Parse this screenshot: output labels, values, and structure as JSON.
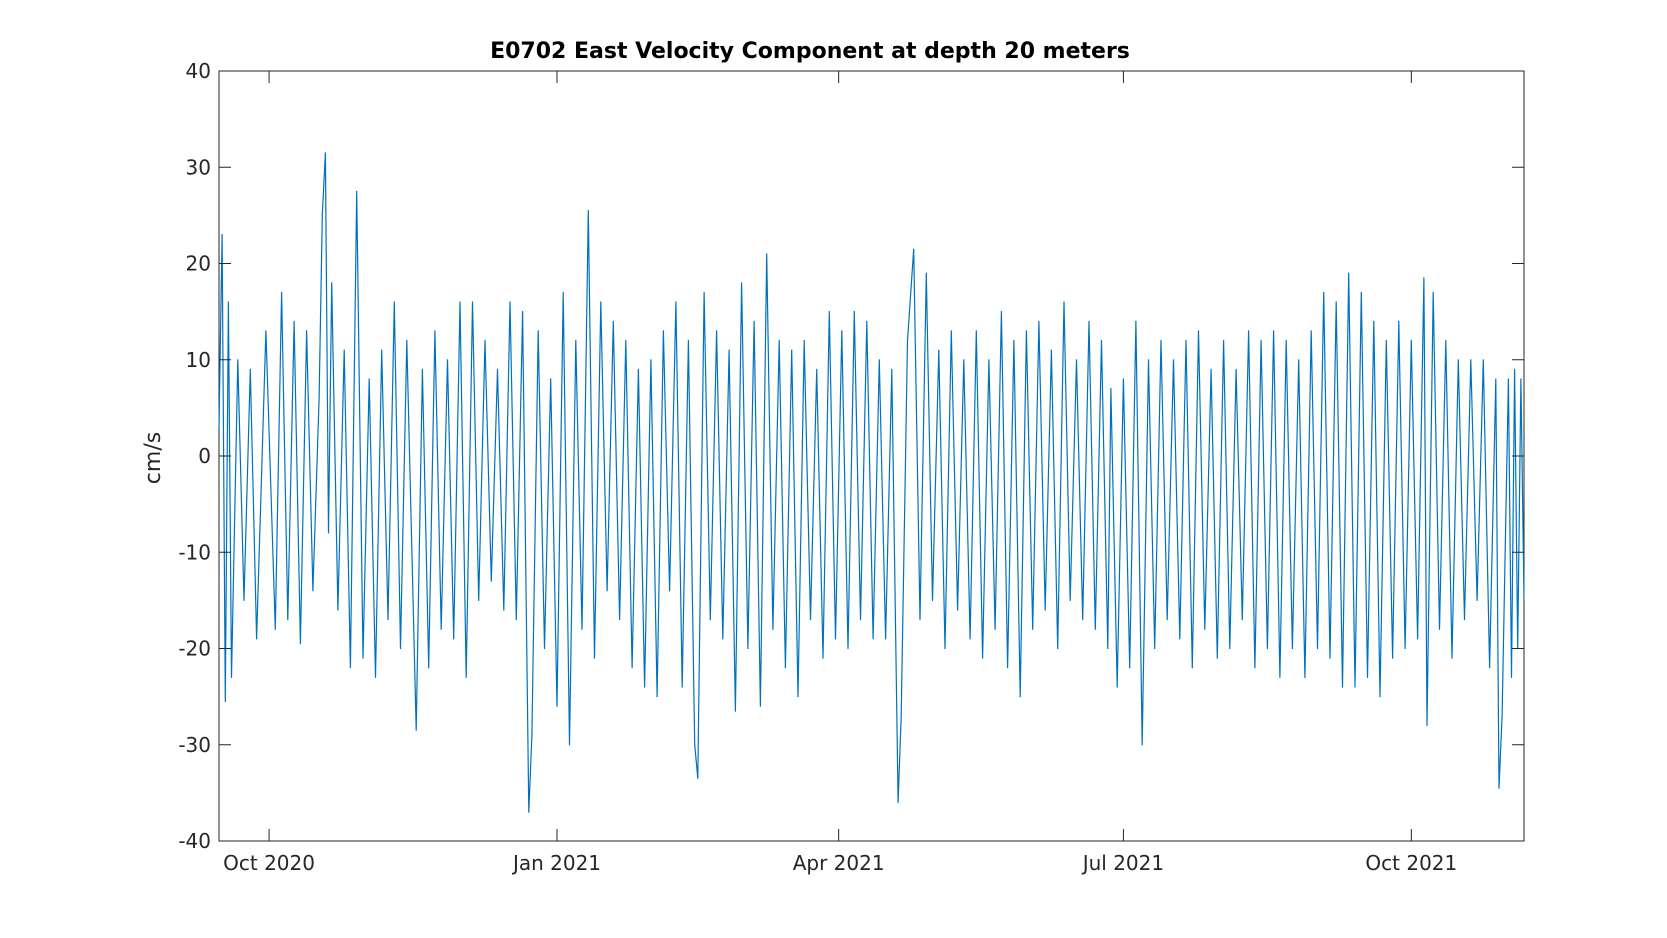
{
  "chart_data": {
    "type": "line",
    "title": "E0702 East Velocity Component at depth 20 meters",
    "xlabel": "",
    "ylabel": "cm/s",
    "x_range": [
      "2020-09-15",
      "2021-11-06"
    ],
    "ylim": [
      -40,
      40
    ],
    "yticks": [
      40,
      30,
      20,
      10,
      0,
      -10,
      -20,
      -30,
      -40
    ],
    "xticks": [
      {
        "date": "2020-10-01",
        "label": "Oct 2020"
      },
      {
        "date": "2021-01-01",
        "label": "Jan 2021"
      },
      {
        "date": "2021-04-01",
        "label": "Apr 2021"
      },
      {
        "date": "2021-07-01",
        "label": "Jul 2021"
      },
      {
        "date": "2021-10-01",
        "label": "Oct 2021"
      }
    ],
    "grid": false,
    "series_color": "#0072BD",
    "series": [
      {
        "name": "",
        "note_sampling": "high-frequency series; envelope points listed (date, value in cm/s)",
        "points": [
          [
            "2020-09-15",
            3
          ],
          [
            "2020-09-16",
            23
          ],
          [
            "2020-09-17",
            -25.5
          ],
          [
            "2020-09-18",
            16
          ],
          [
            "2020-09-19",
            -23
          ],
          [
            "2020-09-21",
            10
          ],
          [
            "2020-09-23",
            -15
          ],
          [
            "2020-09-25",
            9
          ],
          [
            "2020-09-27",
            -19
          ],
          [
            "2020-09-30",
            13
          ],
          [
            "2020-10-03",
            -18
          ],
          [
            "2020-10-05",
            17
          ],
          [
            "2020-10-07",
            -17
          ],
          [
            "2020-10-09",
            14
          ],
          [
            "2020-10-11",
            -19.5
          ],
          [
            "2020-10-13",
            13
          ],
          [
            "2020-10-15",
            -14
          ],
          [
            "2020-10-17",
            6
          ],
          [
            "2020-10-18",
            25
          ],
          [
            "2020-10-19",
            31.5
          ],
          [
            "2020-10-20",
            -8
          ],
          [
            "2020-10-21",
            18
          ],
          [
            "2020-10-23",
            -16
          ],
          [
            "2020-10-25",
            11
          ],
          [
            "2020-10-27",
            -22
          ],
          [
            "2020-10-29",
            27.5
          ],
          [
            "2020-10-31",
            -21
          ],
          [
            "2020-11-02",
            8
          ],
          [
            "2020-11-04",
            -23
          ],
          [
            "2020-11-06",
            11
          ],
          [
            "2020-11-08",
            -17
          ],
          [
            "2020-11-10",
            16
          ],
          [
            "2020-11-12",
            -20
          ],
          [
            "2020-11-14",
            12
          ],
          [
            "2020-11-17",
            -28.5
          ],
          [
            "2020-11-19",
            9
          ],
          [
            "2020-11-21",
            -22
          ],
          [
            "2020-11-23",
            13
          ],
          [
            "2020-11-25",
            -18
          ],
          [
            "2020-11-27",
            10
          ],
          [
            "2020-11-29",
            -19
          ],
          [
            "2020-12-01",
            16
          ],
          [
            "2020-12-03",
            -23
          ],
          [
            "2020-12-05",
            16
          ],
          [
            "2020-12-07",
            -15
          ],
          [
            "2020-12-09",
            12
          ],
          [
            "2020-12-11",
            -13
          ],
          [
            "2020-12-13",
            9
          ],
          [
            "2020-12-15",
            -16
          ],
          [
            "2020-12-17",
            16
          ],
          [
            "2020-12-19",
            -17
          ],
          [
            "2020-12-21",
            15
          ],
          [
            "2020-12-23",
            -37
          ],
          [
            "2020-12-24",
            -29
          ],
          [
            "2020-12-26",
            13
          ],
          [
            "2020-12-28",
            -20
          ],
          [
            "2020-12-30",
            8
          ],
          [
            "2021-01-01",
            -26
          ],
          [
            "2021-01-03",
            17
          ],
          [
            "2021-01-05",
            -30
          ],
          [
            "2021-01-07",
            12
          ],
          [
            "2021-01-09",
            -18
          ],
          [
            "2021-01-11",
            25.5
          ],
          [
            "2021-01-13",
            -21
          ],
          [
            "2021-01-15",
            16
          ],
          [
            "2021-01-17",
            -14
          ],
          [
            "2021-01-19",
            14
          ],
          [
            "2021-01-21",
            -17
          ],
          [
            "2021-01-23",
            12
          ],
          [
            "2021-01-25",
            -22
          ],
          [
            "2021-01-27",
            9
          ],
          [
            "2021-01-29",
            -24
          ],
          [
            "2021-01-31",
            10
          ],
          [
            "2021-02-02",
            -25
          ],
          [
            "2021-02-04",
            13
          ],
          [
            "2021-02-06",
            -14
          ],
          [
            "2021-02-08",
            16
          ],
          [
            "2021-02-10",
            -24
          ],
          [
            "2021-02-12",
            12
          ],
          [
            "2021-02-14",
            -30
          ],
          [
            "2021-02-15",
            -33.5
          ],
          [
            "2021-02-17",
            17
          ],
          [
            "2021-02-19",
            -17
          ],
          [
            "2021-02-21",
            13
          ],
          [
            "2021-02-23",
            -19
          ],
          [
            "2021-02-25",
            11
          ],
          [
            "2021-02-27",
            -26.5
          ],
          [
            "2021-03-01",
            18
          ],
          [
            "2021-03-03",
            -20
          ],
          [
            "2021-03-05",
            14
          ],
          [
            "2021-03-07",
            -26
          ],
          [
            "2021-03-09",
            21
          ],
          [
            "2021-03-11",
            -18
          ],
          [
            "2021-03-13",
            12
          ],
          [
            "2021-03-15",
            -22
          ],
          [
            "2021-03-17",
            11
          ],
          [
            "2021-03-19",
            -25
          ],
          [
            "2021-03-21",
            12
          ],
          [
            "2021-03-23",
            -17
          ],
          [
            "2021-03-25",
            9
          ],
          [
            "2021-03-27",
            -21
          ],
          [
            "2021-03-29",
            15
          ],
          [
            "2021-03-31",
            -19
          ],
          [
            "2021-04-02",
            13
          ],
          [
            "2021-04-04",
            -20
          ],
          [
            "2021-04-06",
            15
          ],
          [
            "2021-04-08",
            -17
          ],
          [
            "2021-04-10",
            14
          ],
          [
            "2021-04-12",
            -19
          ],
          [
            "2021-04-14",
            10
          ],
          [
            "2021-04-16",
            -19
          ],
          [
            "2021-04-18",
            9
          ],
          [
            "2021-04-20",
            -36
          ],
          [
            "2021-04-21",
            -27
          ],
          [
            "2021-04-23",
            12
          ],
          [
            "2021-04-25",
            21.5
          ],
          [
            "2021-04-27",
            -17
          ],
          [
            "2021-04-29",
            19
          ],
          [
            "2021-05-01",
            -15
          ],
          [
            "2021-05-03",
            11
          ],
          [
            "2021-05-05",
            -20
          ],
          [
            "2021-05-07",
            13
          ],
          [
            "2021-05-09",
            -16
          ],
          [
            "2021-05-11",
            10
          ],
          [
            "2021-05-13",
            -19
          ],
          [
            "2021-05-15",
            13
          ],
          [
            "2021-05-17",
            -21
          ],
          [
            "2021-05-19",
            10
          ],
          [
            "2021-05-21",
            -18
          ],
          [
            "2021-05-23",
            15
          ],
          [
            "2021-05-25",
            -22
          ],
          [
            "2021-05-27",
            12
          ],
          [
            "2021-05-29",
            -25
          ],
          [
            "2021-05-31",
            13
          ],
          [
            "2021-06-02",
            -18
          ],
          [
            "2021-06-04",
            14
          ],
          [
            "2021-06-06",
            -16
          ],
          [
            "2021-06-08",
            11
          ],
          [
            "2021-06-10",
            -20
          ],
          [
            "2021-06-12",
            16
          ],
          [
            "2021-06-14",
            -15
          ],
          [
            "2021-06-16",
            10
          ],
          [
            "2021-06-18",
            -17
          ],
          [
            "2021-06-20",
            14
          ],
          [
            "2021-06-22",
            -18
          ],
          [
            "2021-06-24",
            12
          ],
          [
            "2021-06-26",
            -20
          ],
          [
            "2021-06-27",
            7
          ],
          [
            "2021-06-29",
            -24
          ],
          [
            "2021-07-01",
            8
          ],
          [
            "2021-07-03",
            -22
          ],
          [
            "2021-07-05",
            14
          ],
          [
            "2021-07-07",
            -30
          ],
          [
            "2021-07-09",
            10
          ],
          [
            "2021-07-11",
            -20
          ],
          [
            "2021-07-13",
            12
          ],
          [
            "2021-07-15",
            -17
          ],
          [
            "2021-07-17",
            10
          ],
          [
            "2021-07-19",
            -19
          ],
          [
            "2021-07-21",
            12
          ],
          [
            "2021-07-23",
            -22
          ],
          [
            "2021-07-25",
            13
          ],
          [
            "2021-07-27",
            -18
          ],
          [
            "2021-07-29",
            9
          ],
          [
            "2021-07-31",
            -21
          ],
          [
            "2021-08-02",
            12
          ],
          [
            "2021-08-04",
            -20
          ],
          [
            "2021-08-06",
            9
          ],
          [
            "2021-08-08",
            -17
          ],
          [
            "2021-08-10",
            13
          ],
          [
            "2021-08-12",
            -22
          ],
          [
            "2021-08-14",
            12
          ],
          [
            "2021-08-16",
            -20
          ],
          [
            "2021-08-18",
            13
          ],
          [
            "2021-08-20",
            -23
          ],
          [
            "2021-08-22",
            12
          ],
          [
            "2021-08-24",
            -20
          ],
          [
            "2021-08-26",
            10
          ],
          [
            "2021-08-28",
            -23
          ],
          [
            "2021-08-30",
            13
          ],
          [
            "2021-09-01",
            -20
          ],
          [
            "2021-09-03",
            17
          ],
          [
            "2021-09-05",
            -21
          ],
          [
            "2021-09-07",
            16
          ],
          [
            "2021-09-09",
            -24
          ],
          [
            "2021-09-11",
            19
          ],
          [
            "2021-09-13",
            -24
          ],
          [
            "2021-09-15",
            17
          ],
          [
            "2021-09-17",
            -23
          ],
          [
            "2021-09-19",
            14
          ],
          [
            "2021-09-21",
            -25
          ],
          [
            "2021-09-23",
            12
          ],
          [
            "2021-09-25",
            -21
          ],
          [
            "2021-09-27",
            14
          ],
          [
            "2021-09-29",
            -20
          ],
          [
            "2021-10-01",
            12
          ],
          [
            "2021-10-03",
            -19
          ],
          [
            "2021-10-05",
            18.5
          ],
          [
            "2021-10-06",
            -28
          ],
          [
            "2021-10-08",
            17
          ],
          [
            "2021-10-10",
            -18
          ],
          [
            "2021-10-12",
            12
          ],
          [
            "2021-10-14",
            -21
          ],
          [
            "2021-10-16",
            10
          ],
          [
            "2021-10-18",
            -17
          ],
          [
            "2021-10-20",
            10
          ],
          [
            "2021-10-22",
            -15
          ],
          [
            "2021-10-24",
            10
          ],
          [
            "2021-10-26",
            -22
          ],
          [
            "2021-10-28",
            8
          ],
          [
            "2021-10-29",
            -34.5
          ],
          [
            "2021-10-30",
            -27
          ],
          [
            "2021-11-01",
            8
          ],
          [
            "2021-11-02",
            -23
          ],
          [
            "2021-11-03",
            9
          ],
          [
            "2021-11-04",
            -20
          ],
          [
            "2021-11-05",
            8
          ],
          [
            "2021-11-06",
            -15
          ]
        ]
      }
    ]
  }
}
